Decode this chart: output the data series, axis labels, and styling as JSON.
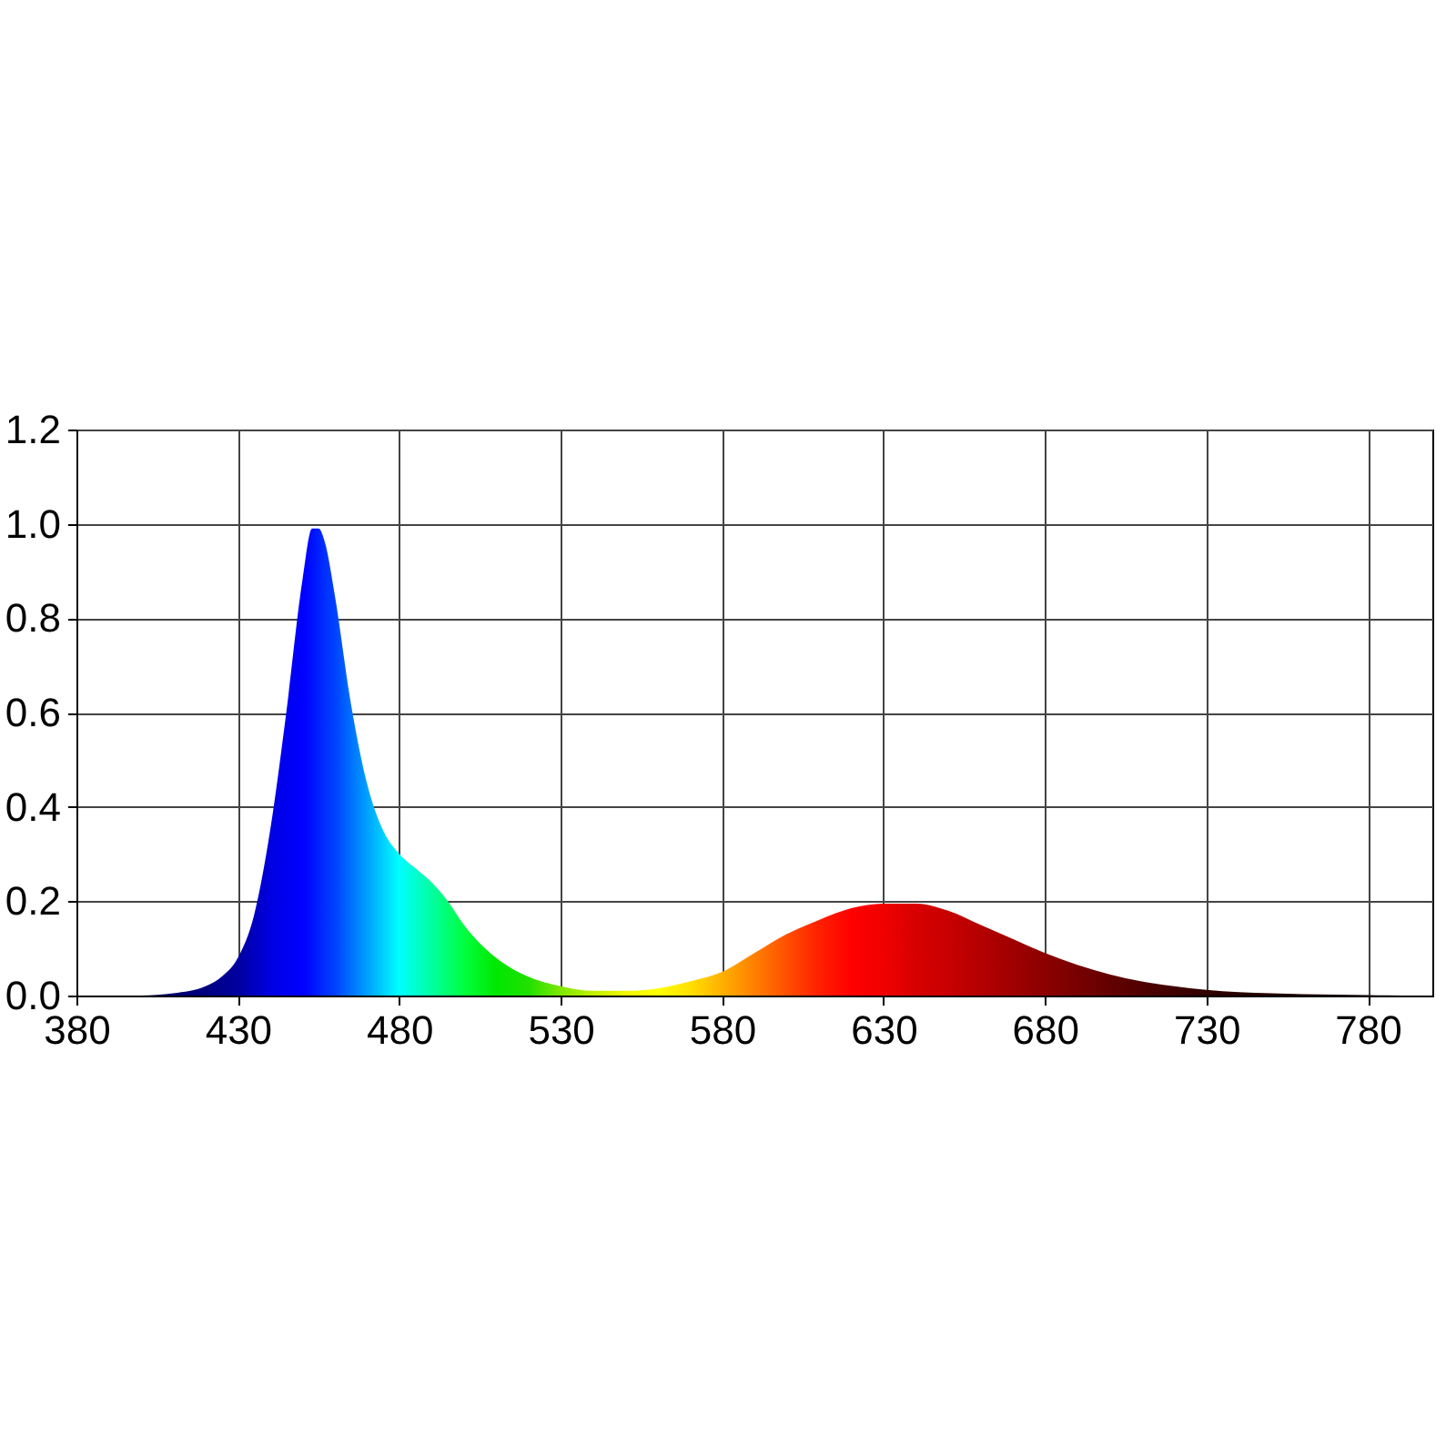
{
  "chart_data": {
    "type": "area",
    "x": [
      400,
      410,
      420,
      425,
      430,
      435,
      440,
      445,
      450,
      453,
      455,
      457,
      460,
      465,
      470,
      475,
      480,
      485,
      490,
      495,
      500,
      510,
      520,
      530,
      540,
      550,
      560,
      570,
      580,
      590,
      600,
      610,
      620,
      630,
      640,
      650,
      660,
      670,
      680,
      690,
      700,
      710,
      720,
      730,
      740,
      760,
      780,
      795
    ],
    "values": [
      0,
      0.005,
      0.02,
      0.04,
      0.08,
      0.17,
      0.35,
      0.6,
      0.88,
      0.99,
      0.99,
      0.96,
      0.85,
      0.62,
      0.45,
      0.35,
      0.3,
      0.27,
      0.24,
      0.2,
      0.15,
      0.08,
      0.04,
      0.02,
      0.01,
      0.01,
      0.015,
      0.03,
      0.05,
      0.09,
      0.13,
      0.16,
      0.185,
      0.195,
      0.195,
      0.18,
      0.15,
      0.12,
      0.09,
      0.065,
      0.045,
      0.03,
      0.02,
      0.012,
      0.007,
      0.003,
      0.001,
      0
    ],
    "colors": [
      "#000060",
      "#000070",
      "#000080",
      "#000090",
      "#0000a0",
      "#0000c0",
      "#0000e0",
      "#0000f0",
      "#0000ff",
      "#0010ff",
      "#0020ff",
      "#0030ff",
      "#0040ff",
      "#0070ff",
      "#00a0ff",
      "#00d0ff",
      "#00ffff",
      "#00ffd0",
      "#00ffa0",
      "#00ff70",
      "#00ff40",
      "#00e800",
      "#20e000",
      "#80e800",
      "#c0f000",
      "#f0f800",
      "#ffff00",
      "#ffe000",
      "#ffb000",
      "#ff8000",
      "#ff5000",
      "#ff2000",
      "#ff0000",
      "#f00000",
      "#d80000",
      "#c80000",
      "#b40000",
      "#a00000",
      "#8c0000",
      "#780000",
      "#640000",
      "#500000",
      "#400000",
      "#300000",
      "#280000",
      "#200000",
      "#180000",
      "#100000"
    ],
    "xlim": [
      380,
      800
    ],
    "xticks": [
      380,
      430,
      480,
      530,
      580,
      630,
      680,
      730,
      780
    ],
    "ylim": [
      0,
      1.2
    ],
    "yticks": [
      {
        "value": 0,
        "label": "0.0"
      },
      0.2,
      0.4,
      0.6,
      0.8,
      {
        "value": 1,
        "label": "1.0"
      },
      1.2
    ],
    "grid": true
  }
}
